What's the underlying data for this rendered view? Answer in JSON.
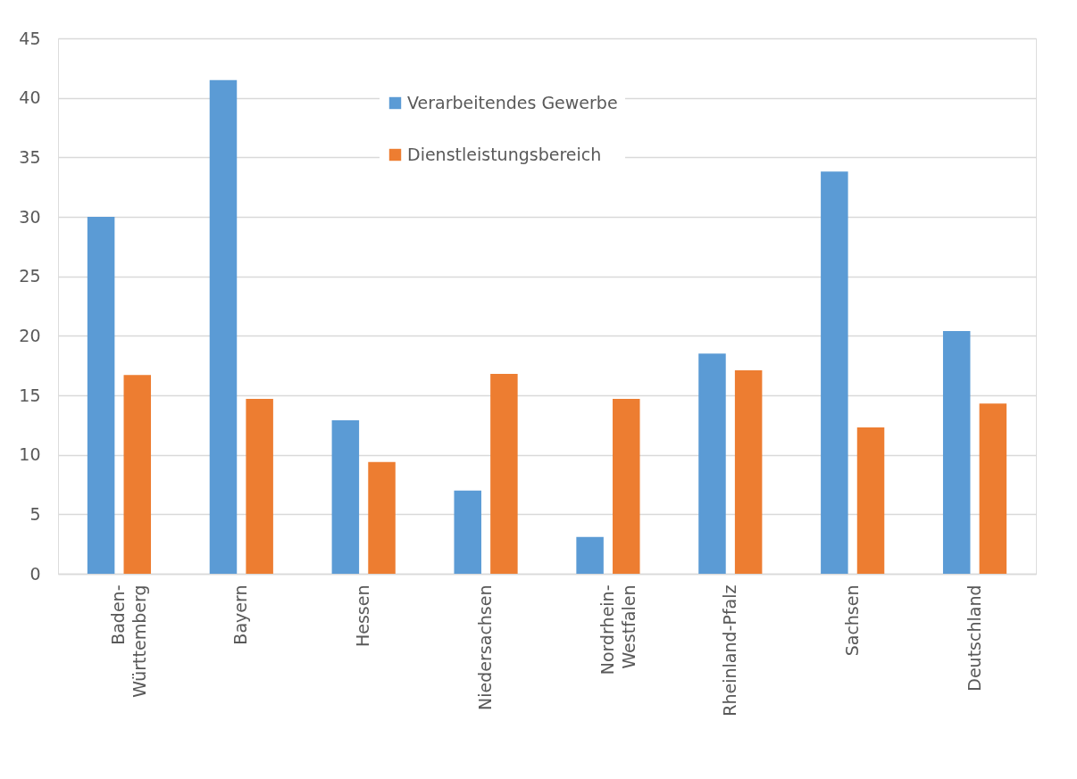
{
  "chart_data": {
    "type": "bar",
    "categories": [
      "Baden-\nWürttemberg",
      "Bayern",
      "Hessen",
      "Niedersachsen",
      "Nordrhein-\nWestfalen",
      "Rheinland-Pfalz",
      "Sachsen",
      "Deutschland"
    ],
    "series": [
      {
        "name": "Verarbeitendes Gewerbe",
        "color": "#5b9bd5",
        "values": [
          30.0,
          41.5,
          12.9,
          7.0,
          3.1,
          18.5,
          33.8,
          20.4
        ]
      },
      {
        "name": "Dienstleistungsbereich",
        "color": "#ed7d31",
        "values": [
          16.7,
          14.7,
          9.4,
          16.8,
          14.7,
          17.1,
          12.3,
          14.3
        ]
      }
    ],
    "ylim": [
      0,
      45
    ],
    "yticks": [
      0,
      5,
      10,
      15,
      20,
      25,
      30,
      35,
      40,
      45
    ],
    "grid": "y",
    "legend": "top"
  }
}
